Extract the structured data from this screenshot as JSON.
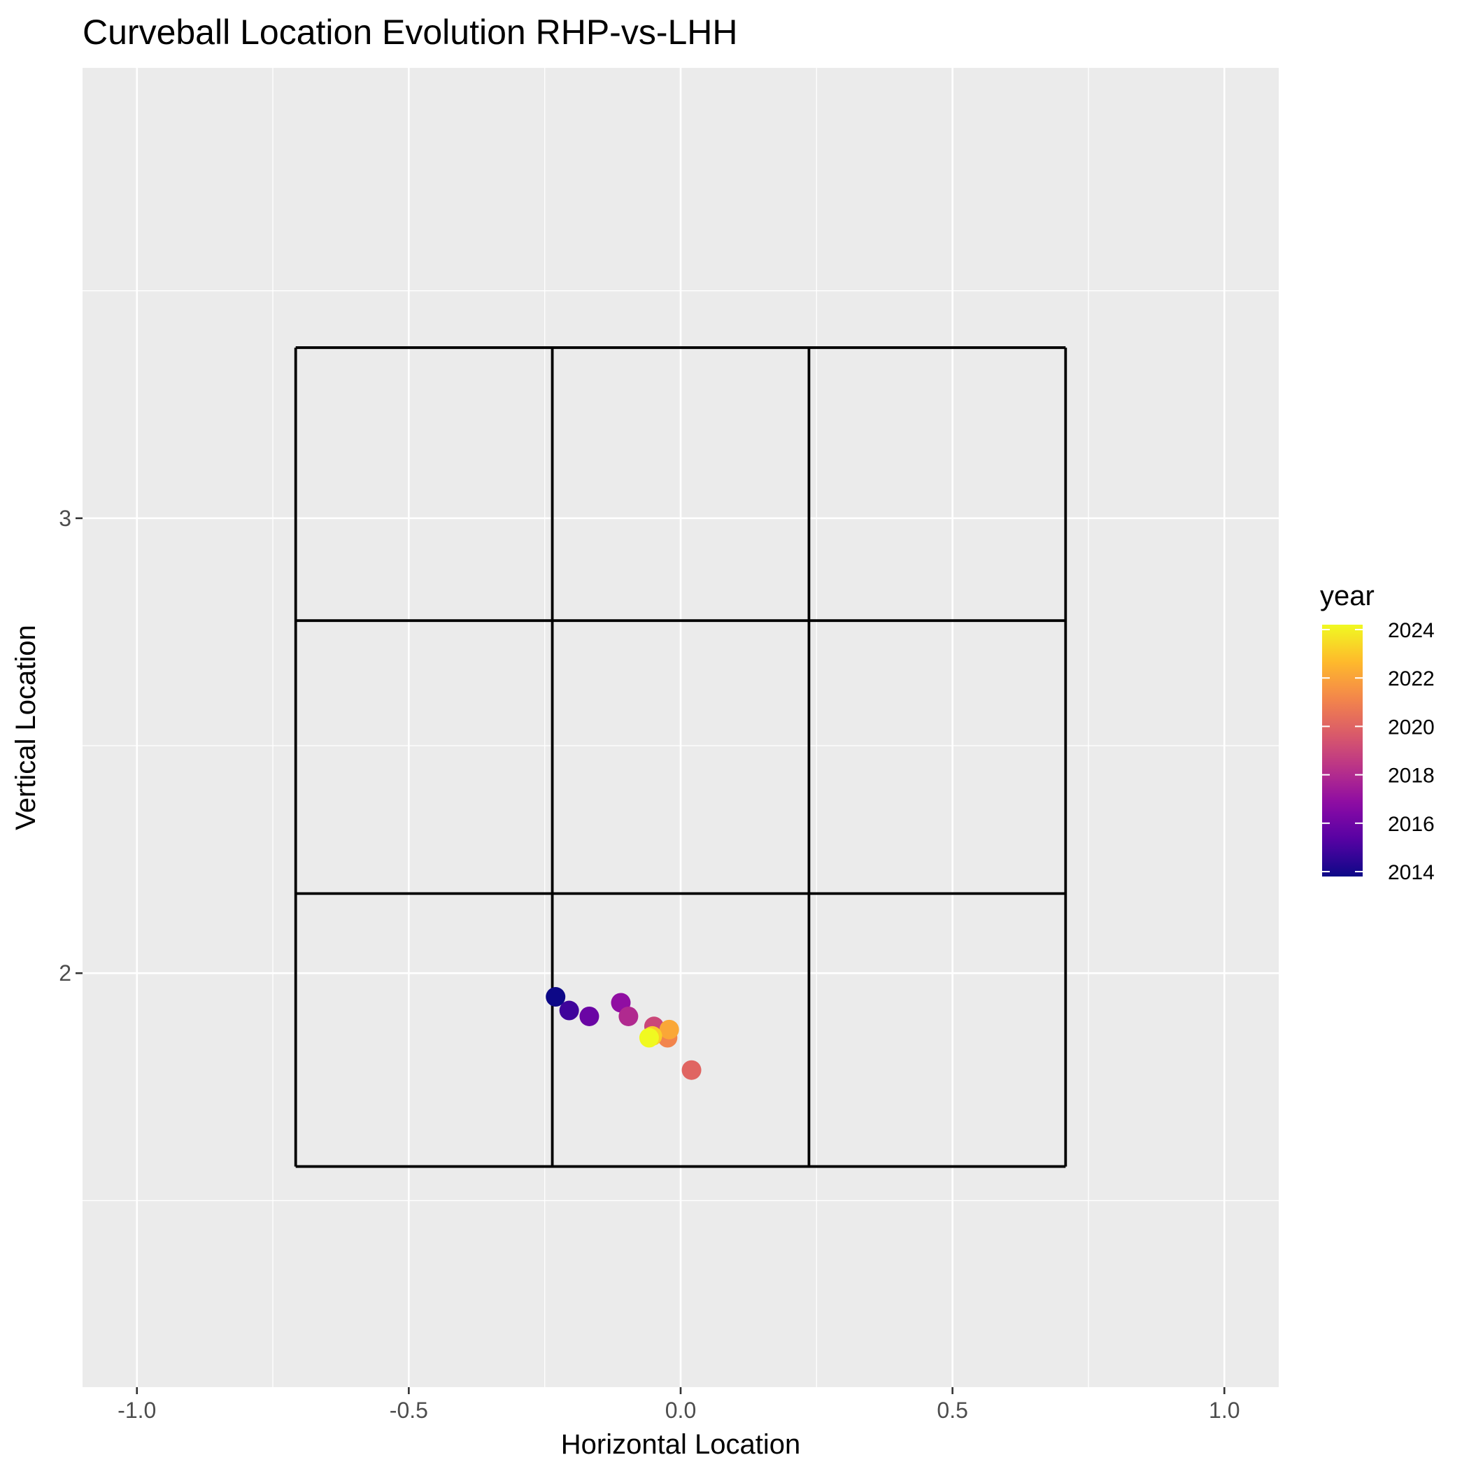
{
  "chart_data": {
    "type": "scatter",
    "title": "Curveball Location Evolution RHP-vs-LHH",
    "xlabel": "Horizontal Location",
    "ylabel": "Vertical Location",
    "xlim": [
      -1.1,
      1.1
    ],
    "ylim": [
      1.09,
      3.99
    ],
    "x_ticks": [
      -1.0,
      -0.5,
      0.0,
      0.5,
      1.0
    ],
    "x_tick_labels": [
      "-1.0",
      "-0.5",
      "0.0",
      "0.5",
      "1.0"
    ],
    "y_ticks": [
      2,
      3
    ],
    "y_tick_labels": [
      "2",
      "3"
    ],
    "grid": true,
    "strike_zone": {
      "x_edges": [
        -0.708,
        -0.236,
        0.236,
        0.708
      ],
      "y_edges": [
        1.575,
        2.175,
        2.775,
        3.375
      ]
    },
    "color_scale": {
      "title": "year",
      "min": 2014,
      "max": 2024,
      "ticks": [
        2014,
        2016,
        2018,
        2020,
        2022,
        2024
      ],
      "tick_labels": [
        "2014",
        "2016",
        "2018",
        "2020",
        "2022",
        "2024"
      ],
      "palette": "plasma",
      "position": "right"
    },
    "points": [
      {
        "year": 2014,
        "x": -0.23,
        "y": 1.948
      },
      {
        "year": 2015,
        "x": -0.205,
        "y": 1.918
      },
      {
        "year": 2016,
        "x": -0.168,
        "y": 1.905
      },
      {
        "year": 2017,
        "x": -0.11,
        "y": 1.935
      },
      {
        "year": 2018,
        "x": -0.096,
        "y": 1.905
      },
      {
        "year": 2019,
        "x": -0.049,
        "y": 1.883
      },
      {
        "year": 2020,
        "x": 0.02,
        "y": 1.787
      },
      {
        "year": 2021,
        "x": -0.024,
        "y": 1.858
      },
      {
        "year": 2022,
        "x": -0.021,
        "y": 1.876
      },
      {
        "year": 2023,
        "x": -0.052,
        "y": 1.862
      },
      {
        "year": 2024,
        "x": -0.058,
        "y": 1.858
      }
    ]
  }
}
